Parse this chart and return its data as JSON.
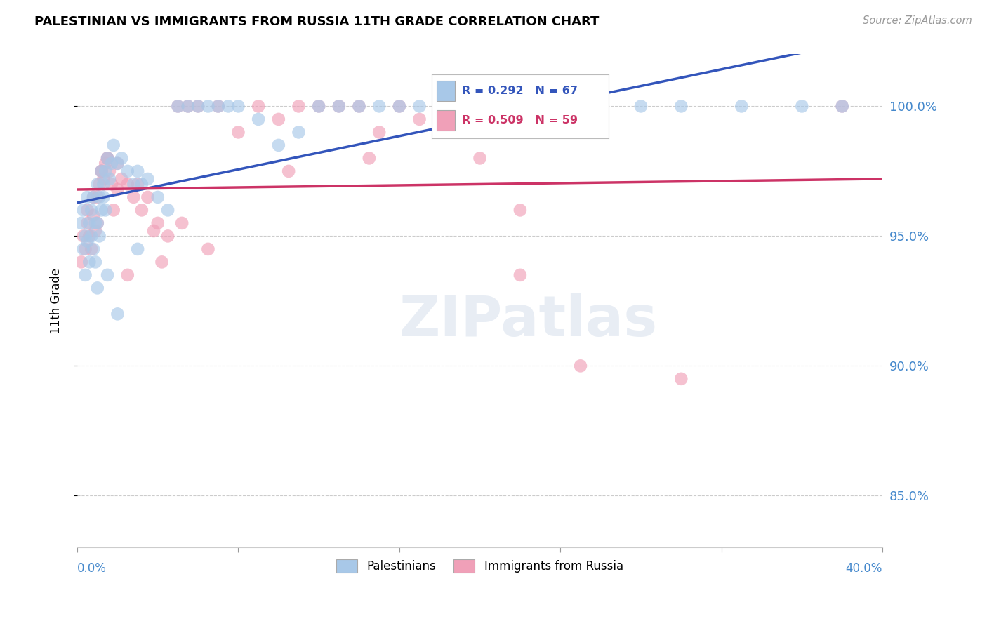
{
  "title": "PALESTINIAN VS IMMIGRANTS FROM RUSSIA 11TH GRADE CORRELATION CHART",
  "source": "Source: ZipAtlas.com",
  "ylabel": "11th Grade",
  "ytick_values": [
    85.0,
    90.0,
    95.0,
    100.0
  ],
  "xlim": [
    0.0,
    40.0
  ],
  "ylim": [
    83.0,
    102.0
  ],
  "watermark": "ZIPatlas",
  "blue_color": "#a8c8e8",
  "pink_color": "#f0a0b8",
  "blue_line_color": "#3355bb",
  "pink_line_color": "#cc3366",
  "palestinians_label": "Palestinians",
  "russia_label": "Immigrants from Russia",
  "blue_R": 0.292,
  "blue_N": 67,
  "pink_R": 0.509,
  "pink_N": 59,
  "blue_dots_x": [
    0.2,
    0.3,
    0.3,
    0.4,
    0.4,
    0.5,
    0.5,
    0.6,
    0.6,
    0.7,
    0.7,
    0.8,
    0.8,
    0.9,
    0.9,
    1.0,
    1.0,
    1.1,
    1.1,
    1.2,
    1.2,
    1.3,
    1.3,
    1.4,
    1.4,
    1.5,
    1.6,
    1.7,
    1.8,
    2.0,
    2.2,
    2.5,
    2.8,
    3.0,
    3.2,
    3.5,
    4.0,
    4.5,
    5.0,
    5.5,
    6.0,
    6.5,
    7.0,
    7.5,
    8.0,
    9.0,
    10.0,
    11.0,
    12.0,
    13.0,
    14.0,
    15.0,
    16.0,
    17.0,
    18.0,
    20.0,
    22.0,
    25.0,
    28.0,
    30.0,
    33.0,
    36.0,
    38.0,
    1.0,
    1.5,
    2.0,
    3.0
  ],
  "blue_dots_y": [
    95.5,
    96.0,
    94.5,
    95.0,
    93.5,
    96.5,
    94.8,
    95.5,
    94.0,
    96.0,
    95.0,
    96.5,
    94.5,
    95.5,
    94.0,
    97.0,
    95.5,
    96.5,
    95.0,
    97.5,
    96.0,
    97.0,
    96.5,
    97.5,
    96.0,
    98.0,
    97.2,
    97.8,
    98.5,
    97.8,
    98.0,
    97.5,
    97.0,
    97.5,
    97.0,
    97.2,
    96.5,
    96.0,
    100.0,
    100.0,
    100.0,
    100.0,
    100.0,
    100.0,
    100.0,
    99.5,
    98.5,
    99.0,
    100.0,
    100.0,
    100.0,
    100.0,
    100.0,
    100.0,
    100.0,
    100.0,
    100.0,
    100.0,
    100.0,
    100.0,
    100.0,
    100.0,
    100.0,
    93.0,
    93.5,
    92.0,
    94.5
  ],
  "pink_dots_x": [
    0.2,
    0.3,
    0.4,
    0.5,
    0.6,
    0.7,
    0.8,
    0.9,
    1.0,
    1.1,
    1.2,
    1.3,
    1.4,
    1.5,
    1.6,
    1.7,
    1.8,
    2.0,
    2.2,
    2.5,
    3.0,
    3.5,
    4.0,
    4.5,
    5.0,
    5.5,
    6.0,
    7.0,
    8.0,
    9.0,
    10.0,
    11.0,
    12.0,
    13.0,
    14.0,
    15.0,
    16.0,
    17.0,
    20.0,
    22.0,
    25.0,
    30.0,
    38.0,
    1.0,
    1.5,
    2.0,
    2.8,
    3.2,
    4.2,
    5.2,
    6.5,
    0.5,
    0.8,
    1.2,
    2.5,
    3.8,
    10.5,
    14.5,
    22.0
  ],
  "pink_dots_y": [
    94.0,
    95.0,
    94.5,
    95.5,
    95.0,
    94.5,
    96.5,
    95.2,
    95.5,
    97.0,
    97.5,
    97.2,
    97.8,
    98.0,
    97.5,
    97.0,
    96.0,
    97.8,
    97.2,
    97.0,
    97.0,
    96.5,
    95.5,
    95.0,
    100.0,
    100.0,
    100.0,
    100.0,
    99.0,
    100.0,
    99.5,
    100.0,
    100.0,
    100.0,
    100.0,
    99.0,
    100.0,
    99.5,
    98.0,
    93.5,
    90.0,
    89.5,
    100.0,
    96.5,
    98.0,
    96.8,
    96.5,
    96.0,
    94.0,
    95.5,
    94.5,
    96.0,
    95.8,
    97.5,
    93.5,
    95.2,
    97.5,
    98.0,
    96.0
  ],
  "grid_color": "#cccccc",
  "spine_color": "#cccccc",
  "right_label_color": "#4488cc",
  "bottom_label_color": "#4488cc"
}
